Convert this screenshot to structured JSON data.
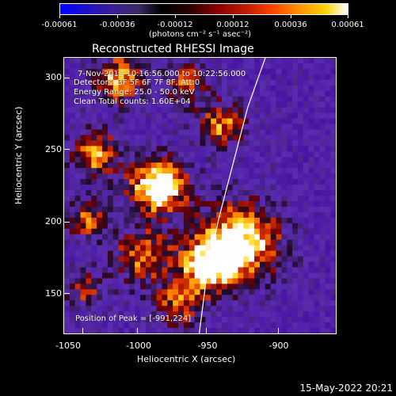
{
  "colorbar": {
    "ticks": [
      "-0.00061",
      "-0.00036",
      "-0.00012",
      "0.00012",
      "0.00036",
      "0.00061"
    ],
    "unit_label": "(photons cm⁻² s⁻¹ asec⁻²)"
  },
  "title": "Reconstructed RHESSI Image",
  "overlay": {
    "time_range": "7-Nov-2012 10:16:56.000 to 10:22:56.000",
    "detectors": "Detectors: 3F 5F 6F 7F 8F, Att:0",
    "energy": "Energy Range: 25.0 - 50.0 keV",
    "clean": "Clean     Total counts: 1.60E+04",
    "peak": "Position of Peak = [-991,224]"
  },
  "axes": {
    "x_label": "Heliocentric X (arcsec)",
    "y_label": "Heliocentric Y (arcsec)",
    "x_ticks": [
      "-1050",
      "-1000",
      "-950",
      "-900"
    ],
    "y_ticks": [
      "300",
      "250",
      "200",
      "150"
    ]
  },
  "footer_date": "15-May-2022 20:21",
  "chart_data": {
    "type": "heatmap",
    "title": "Reconstructed RHESSI Image",
    "xlabel": "Heliocentric X (arcsec)",
    "ylabel": "Heliocentric Y (arcsec)",
    "xlim": [
      -1055,
      -870
    ],
    "ylim": [
      120,
      315
    ],
    "color_range": [
      -0.00061,
      0.00061
    ],
    "peak_position": [
      -991,
      224
    ],
    "sources": [
      {
        "x": -991,
        "y": 224,
        "strength": 1.0,
        "spread": 14
      },
      {
        "x": -935,
        "y": 185,
        "strength": 0.85,
        "spread": 20
      },
      {
        "x": -957,
        "y": 168,
        "strength": 0.72,
        "spread": 14
      },
      {
        "x": -1002,
        "y": 175,
        "strength": 0.6,
        "spread": 14
      },
      {
        "x": -1033,
        "y": 247,
        "strength": 0.65,
        "spread": 12
      },
      {
        "x": -1018,
        "y": 300,
        "strength": 0.72,
        "spread": 12
      },
      {
        "x": -972,
        "y": 297,
        "strength": 0.55,
        "spread": 10
      },
      {
        "x": -948,
        "y": 268,
        "strength": 0.6,
        "spread": 12
      },
      {
        "x": -1040,
        "y": 200,
        "strength": 0.55,
        "spread": 10
      },
      {
        "x": -1040,
        "y": 150,
        "strength": 0.45,
        "spread": 10
      },
      {
        "x": -978,
        "y": 140,
        "strength": 0.5,
        "spread": 12
      }
    ],
    "limb_curve": {
      "x": [
        -963,
        -958,
        -950,
        -940,
        -930,
        -918
      ],
      "y": [
        120,
        160,
        200,
        240,
        280,
        315
      ]
    }
  }
}
